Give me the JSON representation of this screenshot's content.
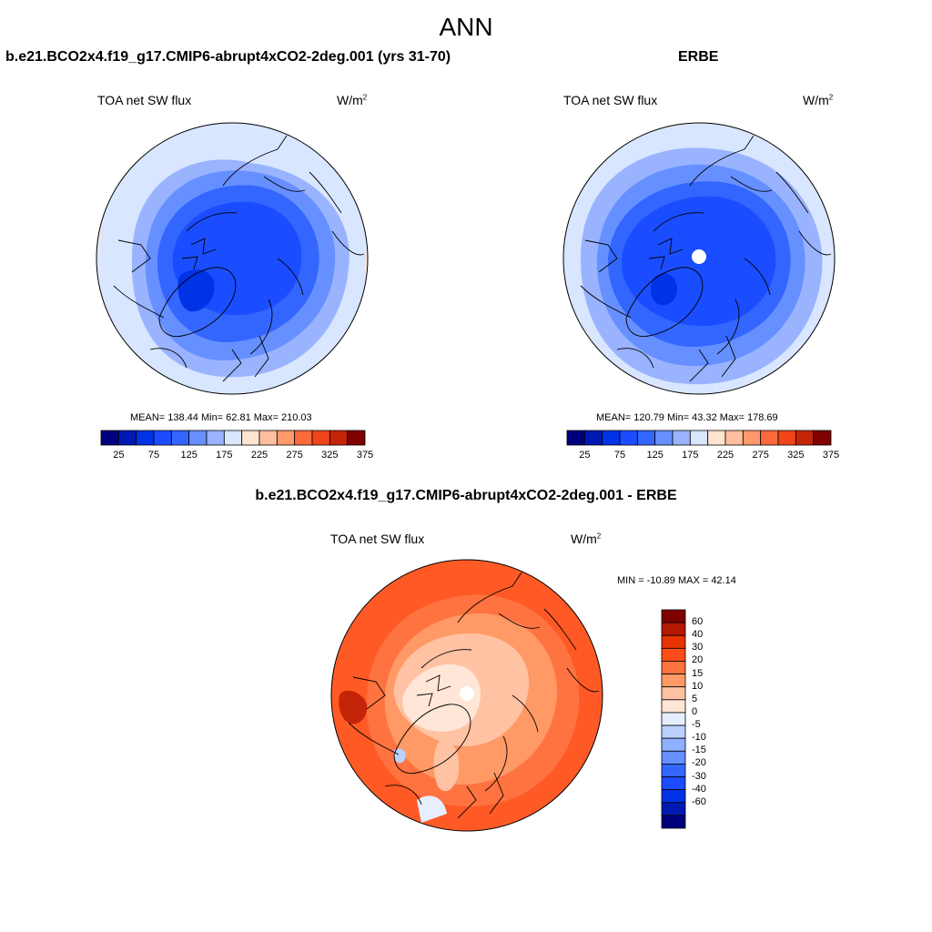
{
  "page": {
    "title": "ANN",
    "diff_title": "b.e21.BCO2x4.f19_g17.CMIP6-abrupt4xCO2-2deg.001 - ERBE"
  },
  "panels": {
    "model": {
      "title": "b.e21.BCO2x4.f19_g17.CMIP6-abrupt4xCO2-2deg.001 (yrs 31-70)",
      "variable": "TOA net SW flux",
      "units_base": "W/m",
      "units_exp": "2",
      "stats": "MEAN= 138.44  Min=  62.81  Max= 210.03",
      "mean": 138.44,
      "min": 62.81,
      "max": 210.03
    },
    "obs": {
      "title": "ERBE",
      "variable": "TOA net SW flux",
      "units_base": "W/m",
      "units_exp": "2",
      "stats": "MEAN= 120.79  Min=  43.32  Max= 178.69",
      "mean": 120.79,
      "min": 43.32,
      "max": 178.69
    },
    "diff": {
      "variable": "TOA net SW flux",
      "units_base": "W/m",
      "units_exp": "2",
      "stats": "MIN = -10.89 MAX =  42.14",
      "min": -10.89,
      "max": 42.14
    }
  },
  "colorbars": {
    "abs": {
      "colors": [
        "#00007f",
        "#0019b3",
        "#0033e6",
        "#1a4dff",
        "#3366ff",
        "#6690ff",
        "#99b3ff",
        "#d9e6ff",
        "#ffe4d1",
        "#ffbf9e",
        "#ff996b",
        "#ff6a3c",
        "#f0451a",
        "#c42508",
        "#7f0000"
      ],
      "tick_labels": [
        "25",
        "75",
        "125",
        "175",
        "225",
        "275",
        "325",
        "375"
      ]
    },
    "diff": {
      "colors": [
        "#7f0000",
        "#b31a00",
        "#e63300",
        "#ff4d19",
        "#ff7340",
        "#ff9966",
        "#ffc2a3",
        "#ffe6d6",
        "#e6eeff",
        "#bcd0ff",
        "#8fb0ff",
        "#6690ff",
        "#3366ff",
        "#1a4dff",
        "#0033e6",
        "#0019b3",
        "#00007f"
      ],
      "tick_labels": [
        "60",
        "40",
        "30",
        "20",
        "15",
        "10",
        "5",
        "0",
        "-5",
        "-10",
        "-15",
        "-20",
        "-30",
        "-40",
        "-60"
      ]
    }
  }
}
